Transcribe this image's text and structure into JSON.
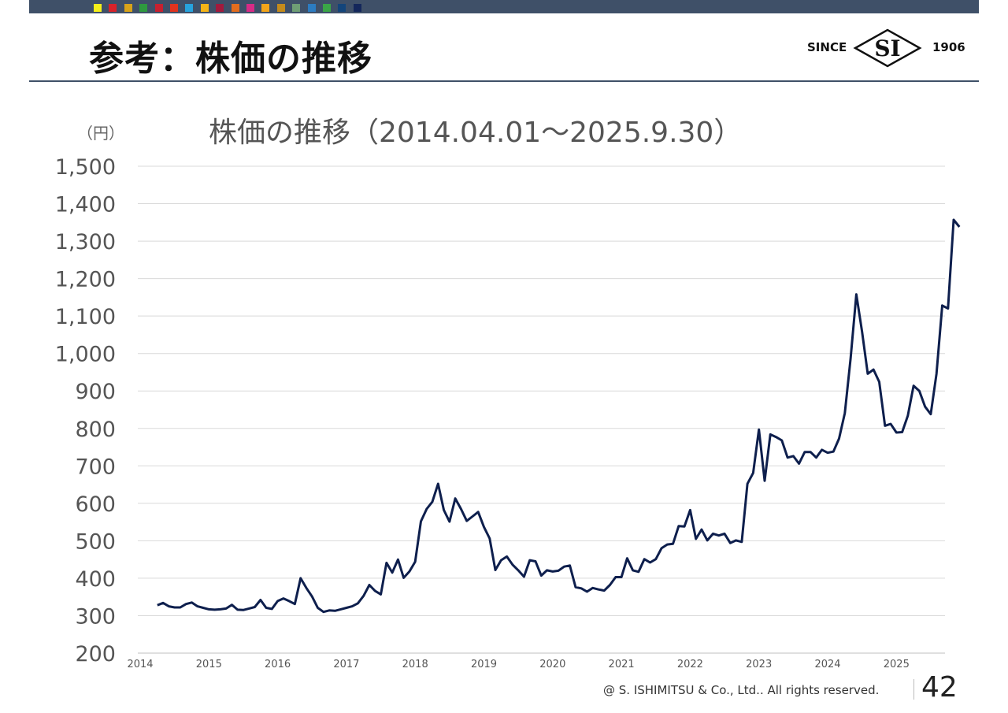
{
  "header": {
    "title": "参考：株価の推移",
    "swatch_colors": [
      "#f5ef1a",
      "#d8232a",
      "#d8a319",
      "#2e9a3f",
      "#c7202f",
      "#e1331f",
      "#27a3dd",
      "#f5b417",
      "#a11a3d",
      "#e26d1e",
      "#d82b86",
      "#f2a41a",
      "#c48b1b",
      "#6f9e75",
      "#2c7cc1",
      "#3aa547",
      "#13457b",
      "#14275b"
    ]
  },
  "logo": {
    "left_text": "SINCE",
    "mark_text": "SI",
    "right_text": "1906"
  },
  "footer": {
    "copyright": "@ S. ISHIMITSU & Co., Ltd.. All rights reserved.",
    "page_number": "42"
  },
  "chart_data": {
    "type": "line",
    "title": "株価の推移（2014.04.01～2025.9.30）",
    "ylabel": "（円）",
    "xlabel": "",
    "ylim": [
      200,
      1500
    ],
    "yticks": [
      "200",
      "300",
      "400",
      "500",
      "600",
      "700",
      "800",
      "900",
      "1,000",
      "1,100",
      "1,200",
      "1,300",
      "1,400",
      "1,500"
    ],
    "xticks": [
      "2014",
      "2015",
      "2016",
      "2017",
      "2018",
      "2019",
      "2020",
      "2021",
      "2022",
      "2023",
      "2024",
      "2025"
    ],
    "x_start": "2014-04",
    "x_end": "2025-09",
    "grid": true,
    "line_color": "#0e1f4d",
    "series": [
      {
        "values": [
          328,
          334,
          325,
          322,
          322,
          331,
          335,
          325,
          321,
          317,
          316,
          317,
          319,
          329,
          316,
          315,
          319,
          323,
          342,
          321,
          318,
          339,
          346,
          339,
          331,
          400,
          374,
          351,
          321,
          310,
          314,
          313,
          317,
          321,
          325,
          333,
          353,
          382,
          366,
          357,
          441,
          415,
          450,
          401,
          418,
          444,
          552,
          585,
          604,
          652,
          582,
          551,
          613,
          585,
          553,
          565,
          577,
          537,
          506,
          422,
          448,
          458,
          436,
          421,
          404,
          448,
          445,
          407,
          421,
          418,
          420,
          431,
          434,
          376,
          373,
          364,
          374,
          370,
          367,
          382,
          403,
          403,
          453,
          421,
          417,
          451,
          442,
          451,
          480,
          490,
          492,
          539,
          538,
          582,
          505,
          530,
          501,
          519,
          514,
          519,
          494,
          501,
          497,
          652,
          681,
          797,
          660,
          784,
          777,
          768,
          722,
          726,
          706,
          737,
          737,
          722,
          743,
          735,
          738,
          773,
          841,
          986,
          1158,
          1058,
          946,
          957,
          924,
          807,
          812,
          789,
          790,
          834,
          914,
          900,
          858,
          838,
          946,
          1128,
          1120,
          1357,
          1338
        ]
      }
    ]
  }
}
